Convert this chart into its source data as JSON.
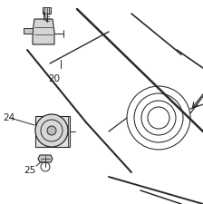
{
  "bg_color": "#ffffff",
  "line_color": "#2a2a2a",
  "label_color": "#222222",
  "font_size": 7.5,
  "figsize": [
    2.24,
    2.25
  ],
  "dpi": 100
}
